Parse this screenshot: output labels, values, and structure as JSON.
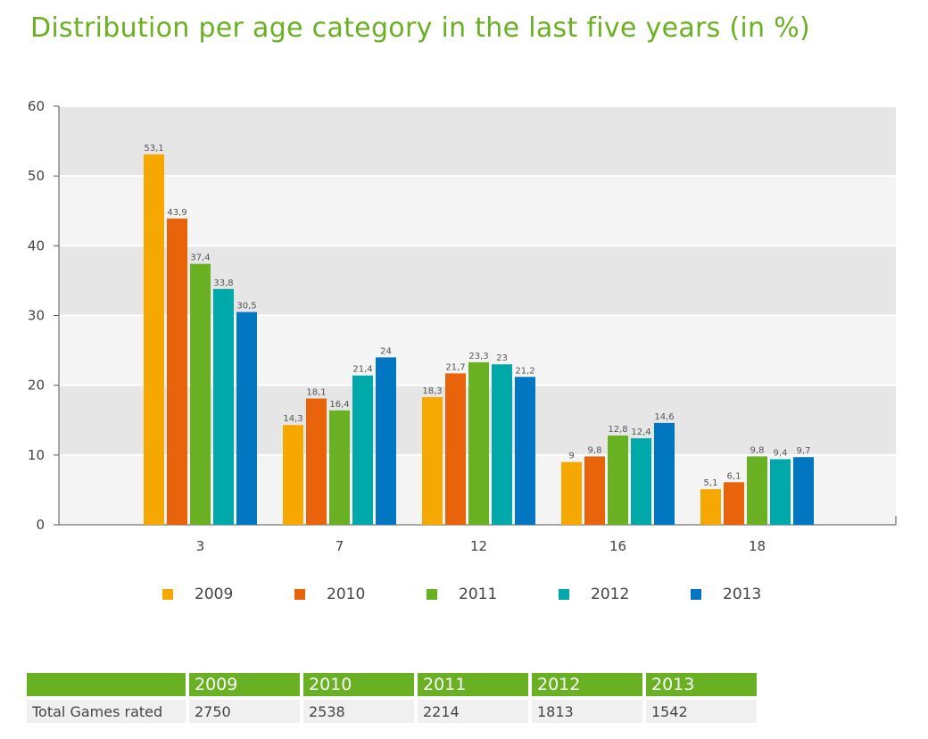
{
  "page_title": "Distribution per age category in the last five years (in %)",
  "chart_data": {
    "type": "bar",
    "title": "Distribution per age category in the last five years (in %)",
    "xlabel": "",
    "ylabel": "",
    "ylim": [
      0,
      60
    ],
    "yticks": [
      0,
      10,
      20,
      30,
      40,
      50,
      60
    ],
    "categories": [
      "3",
      "7",
      "12",
      "16",
      "18"
    ],
    "series": [
      {
        "name": "2009",
        "color": "#f5a800",
        "values": [
          53.1,
          14.3,
          18.3,
          9,
          5.1
        ],
        "labels": [
          "53,1",
          "14,3",
          "18,3",
          "9",
          "5,1"
        ]
      },
      {
        "name": "2010",
        "color": "#e8630a",
        "values": [
          43.9,
          18.1,
          21.7,
          9.8,
          6.1
        ],
        "labels": [
          "43,9",
          "18,1",
          "21,7",
          "9,8",
          "6,1"
        ]
      },
      {
        "name": "2011",
        "color": "#6ab023",
        "values": [
          37.4,
          16.4,
          23.3,
          12.8,
          9.8
        ],
        "labels": [
          "37,4",
          "16,4",
          "23,3",
          "12,8",
          "9,8"
        ]
      },
      {
        "name": "2012",
        "color": "#00a9a9",
        "values": [
          33.8,
          21.4,
          23,
          12.4,
          9.4
        ],
        "labels": [
          "33,8",
          "21,4",
          "23",
          "12,4",
          "9,4"
        ]
      },
      {
        "name": "2013",
        "color": "#0077c0",
        "values": [
          30.5,
          24,
          21.2,
          14.6,
          9.7
        ],
        "labels": [
          "30,5",
          "24",
          "21,2",
          "14,6",
          "9,7"
        ]
      }
    ],
    "grid": true,
    "legend": "bottom"
  },
  "table": {
    "row_label": "Total Games rated",
    "years": [
      "2009",
      "2010",
      "2011",
      "2012",
      "2013"
    ],
    "values": [
      "2750",
      "2538",
      "2214",
      "1813",
      "1542"
    ]
  }
}
